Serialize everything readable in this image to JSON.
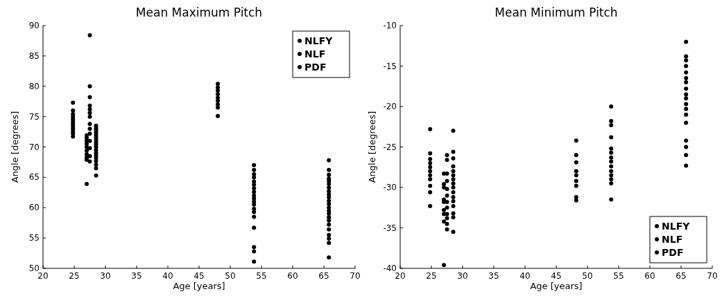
{
  "chart_data": [
    {
      "type": "scatter",
      "title": "Mean Maximum Pitch",
      "xlabel": "Age [years]",
      "ylabel": "Angle [degrees]",
      "xlim": [
        20,
        70
      ],
      "xticks": [
        20,
        25,
        30,
        35,
        40,
        45,
        50,
        55,
        60,
        65,
        70
      ],
      "ylim": [
        50,
        90
      ],
      "yticks": [
        50,
        55,
        60,
        65,
        70,
        75,
        80,
        85,
        90
      ],
      "legend": "top right",
      "marker": "circle",
      "series": [
        {
          "name": "NLFY",
          "color": "#000000",
          "x": [
            24.8,
            24.8,
            24.8,
            24.8,
            24.8,
            24.8,
            24.8,
            24.8,
            24.8,
            24.8,
            24.8,
            24.8,
            27,
            27,
            27,
            27,
            27,
            27,
            27,
            27,
            27,
            27,
            27.5,
            27.5,
            27.5,
            27.5,
            27.5,
            27.5,
            27.5,
            27.5,
            27.5,
            27.5,
            27.5,
            27.5,
            27.5,
            27.5,
            28.5,
            28.5,
            28.5,
            28.5,
            28.5,
            28.5,
            28.5,
            28.5,
            28.5,
            28.5,
            28.5,
            28.5,
            28.5,
            28.5,
            28.5,
            28.5,
            28.5,
            28.5
          ],
          "values": [
            77.3,
            76,
            75.4,
            75,
            74.6,
            74.2,
            73.8,
            73.4,
            73,
            72.6,
            72.2,
            71.7,
            71.9,
            71.5,
            71,
            70.5,
            70,
            69.4,
            68.8,
            68.3,
            67.9,
            63.9,
            88.4,
            80,
            78.2,
            76.8,
            76.2,
            75.6,
            75,
            73.8,
            73,
            72.2,
            71,
            69.8,
            68.5,
            67.6,
            73.5,
            73.1,
            72.8,
            72.4,
            72,
            71.6,
            71.2,
            70.8,
            70.4,
            70,
            69.5,
            69,
            68.6,
            68.2,
            67.7,
            67.1,
            66.5,
            65.3
          ]
        },
        {
          "name": "NLF",
          "color": "#000000",
          "x": [
            48,
            48,
            48,
            48,
            48,
            48,
            48,
            48,
            48,
            53.8,
            53.8,
            53.8,
            53.8,
            53.8,
            53.8,
            53.8,
            53.8,
            53.8,
            53.8,
            53.8,
            53.8,
            53.8,
            53.8,
            53.8,
            53.8,
            53.8,
            53.8,
            53.8
          ],
          "values": [
            80.4,
            79.8,
            79.3,
            78.7,
            78.1,
            77.6,
            77,
            76.5,
            75.1,
            67,
            66.2,
            65.5,
            65,
            64.3,
            63.8,
            63.2,
            62.6,
            62,
            61.5,
            61,
            60.5,
            59.8,
            59.3,
            58.5,
            56.7,
            53.5,
            52.8,
            51.1
          ]
        },
        {
          "name": "PDF",
          "color": "#000000",
          "x": [
            65.8,
            65.8,
            65.8,
            65.8,
            65.8,
            65.8,
            65.8,
            65.8,
            65.8,
            65.8,
            65.8,
            65.8,
            65.8,
            65.8,
            65.8,
            65.8,
            65.8,
            65.8,
            65.8,
            65.8,
            65.8,
            65.8,
            65.8
          ],
          "values": [
            67.8,
            66.2,
            65.4,
            64.8,
            64.4,
            63.9,
            63.3,
            62.7,
            62.2,
            61.7,
            61.1,
            60.6,
            60,
            59.5,
            59,
            58.4,
            57.9,
            57.2,
            56.4,
            55.5,
            54.9,
            54.2,
            51.8
          ]
        }
      ]
    },
    {
      "type": "scatter",
      "title": "Mean Minimum Pitch",
      "xlabel": "Age [years]",
      "ylabel": "Angle [degrees]",
      "xlim": [
        20,
        70
      ],
      "xticks": [
        20,
        25,
        30,
        35,
        40,
        45,
        50,
        55,
        60,
        65,
        70
      ],
      "ylim": [
        -40,
        -10
      ],
      "yticks": [
        -40,
        -35,
        -30,
        -25,
        -20,
        -15,
        -10
      ],
      "legend": "bottom right",
      "marker": "circle",
      "series": [
        {
          "name": "NLFY",
          "color": "#000000",
          "x": [
            24.8,
            24.8,
            24.8,
            24.8,
            24.8,
            24.8,
            24.8,
            24.8,
            24.8,
            24.8,
            24.8,
            27,
            27,
            27,
            27,
            27,
            27,
            27,
            27,
            27,
            27.5,
            27.5,
            27.5,
            27.5,
            27.5,
            27.5,
            27.5,
            27.5,
            27.5,
            27.5,
            27.5,
            27.5,
            28.5,
            28.5,
            28.5,
            28.5,
            28.5,
            28.5,
            28.5,
            28.5,
            28.5,
            28.5,
            28.5,
            28.5,
            28.5,
            28.5,
            28.5,
            28.5
          ],
          "values": [
            -22.8,
            -25.8,
            -26.5,
            -27,
            -27.5,
            -28,
            -28.5,
            -29,
            -29.8,
            -30.6,
            -32.3,
            -28.3,
            -29.6,
            -30,
            -31.5,
            -31.8,
            -32.8,
            -33.3,
            -34.2,
            -39.6,
            -26,
            -26.6,
            -28.3,
            -29.2,
            -30.2,
            -31,
            -31.8,
            -32.5,
            -33.3,
            -33.8,
            -34.5,
            -35.2,
            -23,
            -25.6,
            -26.4,
            -27.4,
            -28,
            -28.5,
            -29,
            -29.5,
            -30,
            -30.6,
            -31.2,
            -31.7,
            -32.3,
            -33.2,
            -33.7,
            -35.5
          ]
        },
        {
          "name": "NLF",
          "color": "#000000",
          "x": [
            48.2,
            48.2,
            48.2,
            48.2,
            48.2,
            48.2,
            48.2,
            48.2,
            48.2,
            53.8,
            53.8,
            53.8,
            53.8,
            53.8,
            53.8,
            53.8,
            53.8,
            53.8,
            53.8,
            53.8,
            53.8,
            53.8,
            53.8
          ],
          "values": [
            -24.2,
            -26,
            -26.9,
            -28,
            -28.5,
            -29.2,
            -29.8,
            -31.2,
            -31.6,
            -20,
            -21.8,
            -22.3,
            -23.8,
            -25.2,
            -25.7,
            -26.3,
            -26.8,
            -27.4,
            -28,
            -28.5,
            -29,
            -29.5,
            -31.5
          ]
        },
        {
          "name": "PDF",
          "color": "#000000",
          "x": [
            65.8,
            65.8,
            65.8,
            65.8,
            65.8,
            65.8,
            65.8,
            65.8,
            65.8,
            65.8,
            65.8,
            65.8,
            65.8,
            65.8,
            65.8,
            65.8,
            65.8,
            65.8
          ],
          "values": [
            -12,
            -13.8,
            -14.3,
            -15,
            -15.8,
            -16.5,
            -17,
            -17.8,
            -18.5,
            -19,
            -19.7,
            -20.3,
            -21,
            -22,
            -24.2,
            -25,
            -26,
            -27.3
          ]
        }
      ]
    }
  ]
}
